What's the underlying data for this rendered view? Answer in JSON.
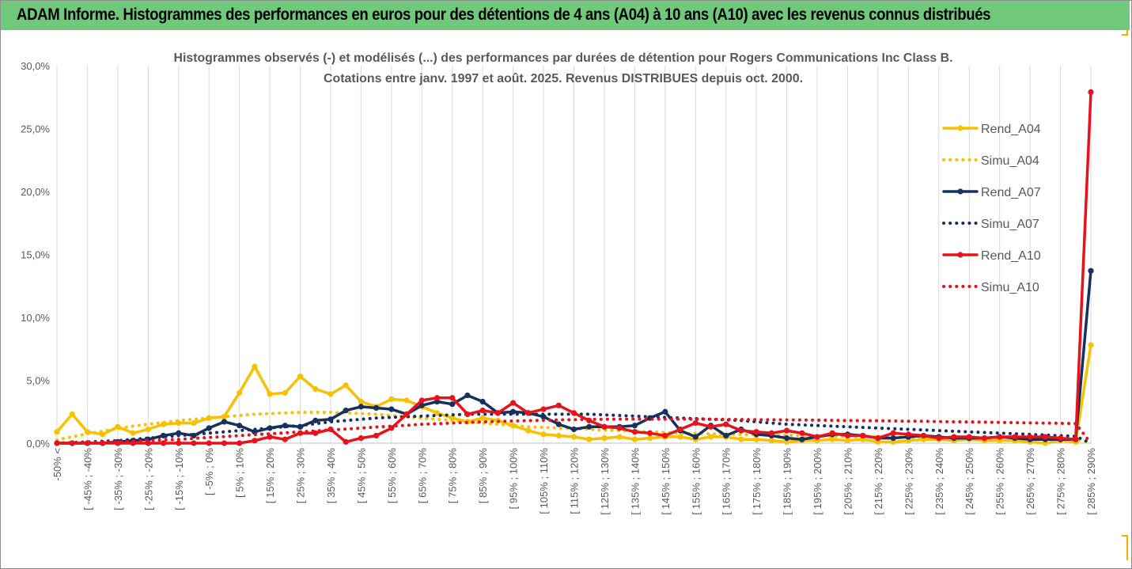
{
  "header": {
    "title": "ADAM Informe. Histogrammes des performances en euros pour des détentions de 4 ans (A04) à 10 ans (A10) avec les revenus connus distribués"
  },
  "chart_data": {
    "type": "line",
    "title": "Histogrammes observés (-) et modélisés (...) des performances par durées de détention pour Rogers Communications Inc Class B.",
    "subtitle": "Cotations entre janv. 1997 et août. 2025. Revenus DISTRIBUES depuis oct. 2000.",
    "xlabel": "",
    "ylabel": "",
    "ylim": [
      0,
      30
    ],
    "yticks": [
      "0,0%",
      "5,0%",
      "10,0%",
      "15,0%",
      "20,0%",
      "25,0%",
      "30,0%"
    ],
    "grid": "vertical",
    "legend_position": "right",
    "x_tick_labels": [
      "-50% <",
      "[ -45% ; -40%",
      "[ -35% ; -30%",
      "[ -25% ; -20%",
      "[ -15% ; -10%",
      "[ -5% ; 0%",
      "[ 5% ; 10%",
      "[ 15% ; 20%",
      "[ 25% ; 30%",
      "[ 35% ; 40%",
      "[ 45% ; 50%",
      "[ 55% ; 60%",
      "[ 65% ; 70%",
      "[ 75% ; 80%",
      "[ 85% ; 90%",
      "[ 95% ; 100%",
      "[ 105% ; 110%",
      "[ 115% ; 120%",
      "[ 125% ; 130%",
      "[ 135% ; 140%",
      "[ 145% ; 150%",
      "[ 155% ; 160%",
      "[ 165% ; 170%",
      "[ 175% ; 180%",
      "[ 185% ; 190%",
      "[ 195% ; 200%",
      "[ 205% ; 210%",
      "[ 215% ; 220%",
      "[ 225% ; 230%",
      "[ 235% ; 240%",
      "[ 245% ; 250%",
      "[ 255% ; 260%",
      "[ 265% ; 270%",
      "[ 275% ; 280%",
      "[ 285% ; 290%"
    ],
    "n_categories": 69,
    "series": [
      {
        "name": "Rend_A04",
        "color": "#f7c000",
        "style": "solid",
        "markers": true,
        "values": [
          0.9,
          2.3,
          0.9,
          0.7,
          1.3,
          0.8,
          1.1,
          1.5,
          1.6,
          1.6,
          2.0,
          2.1,
          4.0,
          6.1,
          3.9,
          4.0,
          5.3,
          4.3,
          3.9,
          4.6,
          3.3,
          2.9,
          3.5,
          3.4,
          2.9,
          2.4,
          2.0,
          1.7,
          2.0,
          1.8,
          1.4,
          1.0,
          0.7,
          0.6,
          0.5,
          0.3,
          0.4,
          0.5,
          0.3,
          0.4,
          0.5,
          0.5,
          0.3,
          0.5,
          0.5,
          0.3,
          0.3,
          0.2,
          0.1,
          0.2,
          0.2,
          0.3,
          0.2,
          0.3,
          0.1,
          0.1,
          0.2,
          0.3,
          0.3,
          0.2,
          0.3,
          0.2,
          0.2,
          0.2,
          0.1,
          0.0,
          0.2,
          0.1,
          7.8
        ]
      },
      {
        "name": "Simu_A04",
        "color": "#f7c000",
        "style": "dotted",
        "markers": false,
        "values": [
          0.25,
          0.5,
          0.75,
          0.95,
          1.15,
          1.35,
          1.5,
          1.65,
          1.8,
          1.9,
          2.0,
          2.1,
          2.2,
          2.3,
          2.35,
          2.4,
          2.45,
          2.45,
          2.45,
          2.4,
          2.35,
          2.3,
          2.2,
          2.1,
          2.0,
          1.9,
          1.8,
          1.7,
          1.6,
          1.5,
          1.4,
          1.3,
          1.25,
          1.2,
          1.15,
          1.1,
          1.05,
          1.0,
          0.95,
          0.9,
          0.85,
          0.8,
          0.78,
          0.75,
          0.72,
          0.7,
          0.67,
          0.65,
          0.62,
          0.6,
          0.58,
          0.56,
          0.54,
          0.52,
          0.5,
          0.48,
          0.46,
          0.44,
          0.42,
          0.4,
          0.39,
          0.38,
          0.37,
          0.36,
          0.35,
          0.34,
          0.33,
          0.32,
          0.0
        ]
      },
      {
        "name": "Rend_A07",
        "color": "#17305e",
        "style": "solid",
        "markers": true,
        "values": [
          0.0,
          0.0,
          0.0,
          0.0,
          0.1,
          0.2,
          0.3,
          0.6,
          0.8,
          0.6,
          1.2,
          1.7,
          1.4,
          0.9,
          1.2,
          1.4,
          1.3,
          1.8,
          1.9,
          2.6,
          2.9,
          2.8,
          2.7,
          2.3,
          3.0,
          3.3,
          3.1,
          3.8,
          3.3,
          2.4,
          2.5,
          2.4,
          2.1,
          1.5,
          1.1,
          1.3,
          1.3,
          1.3,
          1.4,
          2.0,
          2.5,
          1.0,
          0.5,
          1.4,
          0.6,
          1.1,
          0.7,
          0.6,
          0.4,
          0.3,
          0.5,
          0.7,
          0.7,
          0.6,
          0.4,
          0.4,
          0.5,
          0.6,
          0.5,
          0.4,
          0.4,
          0.4,
          0.5,
          0.4,
          0.3,
          0.3,
          0.3,
          0.3,
          13.7
        ]
      },
      {
        "name": "Simu_A07",
        "color": "#17305e",
        "style": "dotted",
        "markers": false,
        "values": [
          0.0,
          0.05,
          0.1,
          0.15,
          0.2,
          0.3,
          0.4,
          0.5,
          0.6,
          0.7,
          0.8,
          0.9,
          1.0,
          1.1,
          1.2,
          1.3,
          1.4,
          1.55,
          1.7,
          1.8,
          1.9,
          2.0,
          2.05,
          2.1,
          2.15,
          2.2,
          2.25,
          2.3,
          2.3,
          2.3,
          2.3,
          2.3,
          2.3,
          2.3,
          2.3,
          2.3,
          2.25,
          2.2,
          2.15,
          2.1,
          2.05,
          2.0,
          1.95,
          1.9,
          1.85,
          1.8,
          1.7,
          1.6,
          1.5,
          1.45,
          1.4,
          1.35,
          1.3,
          1.25,
          1.2,
          1.15,
          1.1,
          1.05,
          1.0,
          0.95,
          0.9,
          0.85,
          0.8,
          0.75,
          0.7,
          0.65,
          0.6,
          0.55,
          0.0
        ]
      },
      {
        "name": "Rend_A10",
        "color": "#e8121c",
        "style": "solid",
        "markers": true,
        "values": [
          0.0,
          0.0,
          0.0,
          0.0,
          0.0,
          0.0,
          0.0,
          0.0,
          0.0,
          0.0,
          0.0,
          0.0,
          0.0,
          0.2,
          0.5,
          0.3,
          0.8,
          0.8,
          1.1,
          0.1,
          0.4,
          0.6,
          1.2,
          2.3,
          3.4,
          3.6,
          3.6,
          2.3,
          2.6,
          2.4,
          3.2,
          2.4,
          2.7,
          3.0,
          2.4,
          1.8,
          1.3,
          1.2,
          0.9,
          0.8,
          0.6,
          1.1,
          1.6,
          1.3,
          1.5,
          1.0,
          0.9,
          0.8,
          1.0,
          0.8,
          0.5,
          0.8,
          0.6,
          0.6,
          0.4,
          0.8,
          0.7,
          0.6,
          0.4,
          0.5,
          0.5,
          0.4,
          0.5,
          0.5,
          0.5,
          0.5,
          0.4,
          0.3,
          27.9
        ]
      },
      {
        "name": "Simu_A10",
        "color": "#e8121c",
        "style": "dotted",
        "markers": false,
        "values": [
          0.0,
          0.02,
          0.05,
          0.08,
          0.1,
          0.15,
          0.2,
          0.25,
          0.3,
          0.38,
          0.45,
          0.52,
          0.6,
          0.68,
          0.75,
          0.82,
          0.9,
          0.98,
          1.05,
          1.12,
          1.2,
          1.28,
          1.35,
          1.42,
          1.5,
          1.55,
          1.6,
          1.65,
          1.7,
          1.73,
          1.76,
          1.79,
          1.82,
          1.85,
          1.87,
          1.89,
          1.9,
          1.91,
          1.91,
          1.91,
          1.91,
          1.91,
          1.9,
          1.9,
          1.89,
          1.88,
          1.87,
          1.86,
          1.85,
          1.84,
          1.83,
          1.82,
          1.8,
          1.79,
          1.78,
          1.77,
          1.75,
          1.74,
          1.72,
          1.7,
          1.69,
          1.67,
          1.65,
          1.63,
          1.61,
          1.6,
          1.58,
          1.56,
          0.0
        ]
      }
    ]
  }
}
